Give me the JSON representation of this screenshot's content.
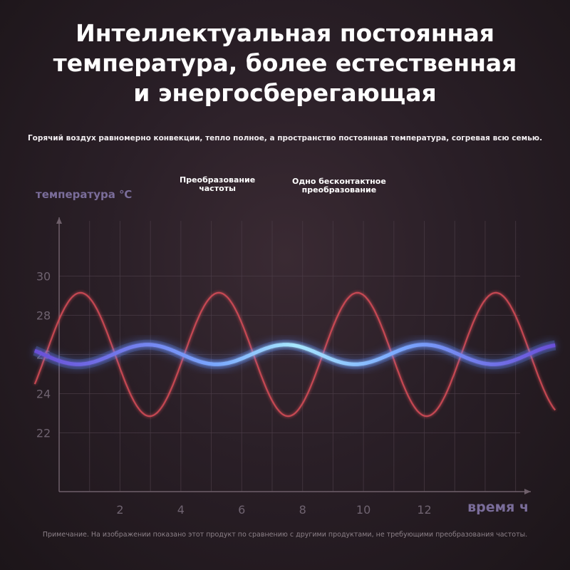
{
  "header": {
    "title_lines": [
      "Интеллектуальная постоянная",
      "температура, более естественная",
      "и энергосберегающая"
    ],
    "subtitle": "Горячий воздух равномерно конвекции, тепло полное, а пространство постоянная температура, согревая всю семью."
  },
  "footer": {
    "note": "Примечание. На изображении показано этот продукт по сравнению с другими продуктами, не требующими преобразования частоты."
  },
  "chart_data": {
    "type": "line",
    "title": "",
    "xlabel": "время ч",
    "ylabel": "температура ℃",
    "xlim": [
      0,
      15.5
    ],
    "ylim": [
      19,
      33
    ],
    "x_ticks": [
      2,
      4,
      6,
      8,
      10,
      12
    ],
    "y_ticks": [
      22,
      24,
      26,
      28,
      30
    ],
    "grid": true,
    "series": [
      {
        "name": "Одно бесконтактное преобразование",
        "color": "#e0505a",
        "shape": "sine",
        "center": 26,
        "amplitude": 3.15,
        "period": 4.55,
        "first_peak_x": 0.7
      },
      {
        "name": "Преобразование частоты",
        "color": "#7ab4ff",
        "shape": "sine",
        "center": 26,
        "amplitude": 0.5,
        "period": 4.55,
        "first_peak_x": 2.9
      }
    ],
    "annotations": [
      {
        "text": "Преобразование частоты",
        "x": 5.2
      },
      {
        "text": "Одно бесконтактное преобразование",
        "x": 9.2
      }
    ],
    "colors": {
      "axis": "#6e5f6a",
      "grid": "#4a3c46",
      "label": "#7a6d9a",
      "tick": "#6f6370"
    }
  }
}
